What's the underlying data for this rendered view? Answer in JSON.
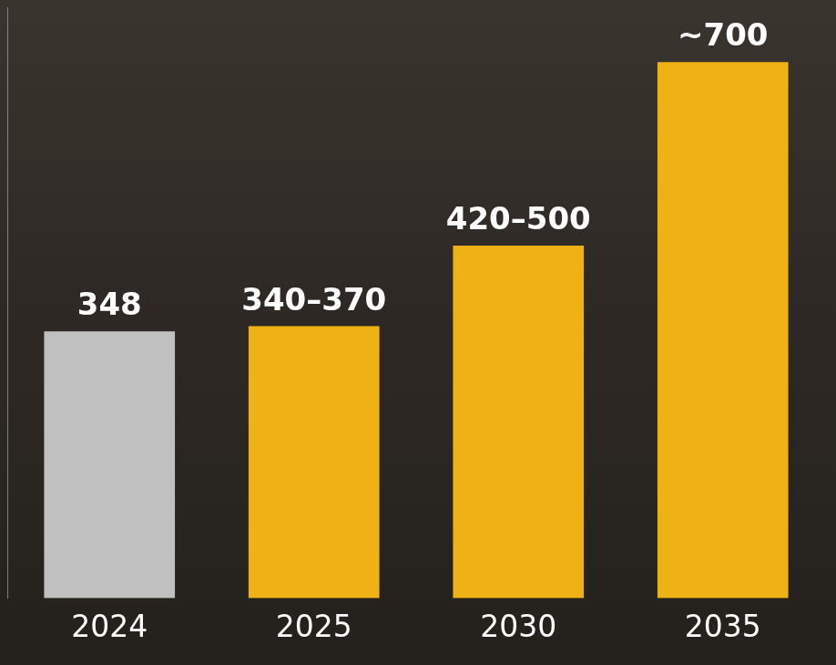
{
  "chart_data": {
    "type": "bar",
    "categories": [
      "2024",
      "2025",
      "2030",
      "2035"
    ],
    "values": [
      348,
      355,
      460,
      700
    ],
    "value_labels": [
      "348",
      "340–370",
      "420–500",
      "~700"
    ],
    "colors": [
      "#c0c0c0",
      "#efb215",
      "#efb215",
      "#efb215"
    ],
    "ylim": [
      0,
      772
    ],
    "grid": false,
    "data_labels": true,
    "tick_labels": "x"
  }
}
